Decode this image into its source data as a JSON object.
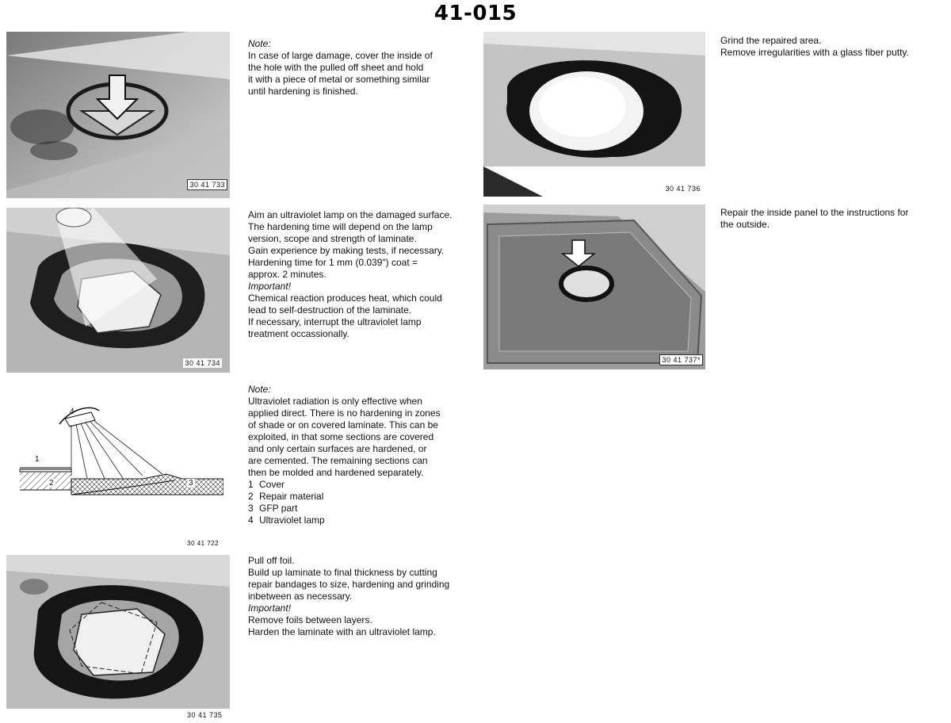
{
  "page": {
    "number": "41-015"
  },
  "figures": [
    {
      "code": "30 41 733"
    },
    {
      "code": "30 41 734"
    },
    {
      "code": "30 41 722"
    },
    {
      "code": "30 41 735"
    },
    {
      "code": "30 41 736"
    },
    {
      "code": "30 41 737*"
    }
  ],
  "diagram": {
    "callouts": [
      "1",
      "2",
      "3",
      "4"
    ]
  },
  "steps": [
    {
      "label": "Note:",
      "text": "In case of large damage, cover the inside of\nthe hole with the pulled off sheet and hold\nit with a piece of metal or something similar\nuntil hardening is finished."
    },
    {
      "text": "Aim an ultraviolet lamp on the damaged surface.\nThe hardening time will depend on the lamp\nversion, scope and strength of laminate.\nGain experience by making tests, if necessary.\nHardening time for 1 mm (0.039\") coat =\napprox. 2 minutes.",
      "label": "Important!",
      "text2": "Chemical reaction produces heat, which could\nlead to self-destruction of the laminate.\nIf necessary, interrupt the ultraviolet lamp\ntreatment occassionally."
    },
    {
      "label": "Note:",
      "text": "Ultraviolet radiation is only effective when\napplied direct. There is no hardening in zones\nof shade or on covered laminate. This can be\nexploited, in that some sections are covered\nand only certain surfaces are hardened, or\nare cemented. The remaining sections can\nthen be molded and hardened separately.",
      "legend": [
        {
          "num": "1",
          "label": "Cover"
        },
        {
          "num": "2",
          "label": "Repair material"
        },
        {
          "num": "3",
          "label": "GFP part"
        },
        {
          "num": "4",
          "label": "Ultraviolet lamp"
        }
      ]
    },
    {
      "text": "Pull off foil.\nBuild up laminate to final thickness by cutting\nrepair bandages to size, hardening and grinding\ninbetween as necessary.",
      "label": "Important!",
      "text2": "Remove foils between layers.\nHarden the laminate with an ultraviolet lamp."
    },
    {
      "text": "Grind the repaired area.\nRemove irregularities with a glass fiber putty."
    },
    {
      "text": "Repair the inside panel to the instructions for\nthe outside."
    }
  ]
}
